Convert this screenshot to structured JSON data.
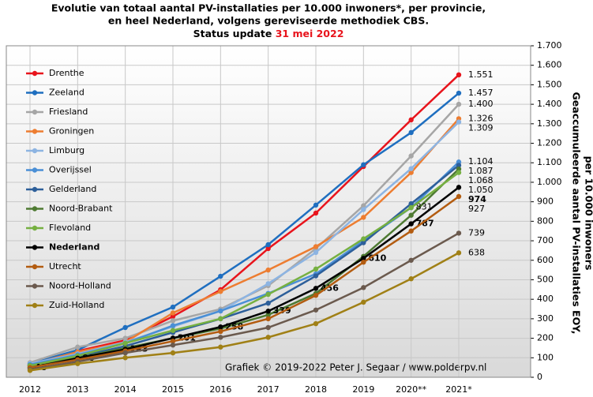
{
  "chart_data": {
    "type": "line",
    "title": [
      "Evolutie van totaal aantal PV-installaties per 10.000 inwoners*, per provincie,",
      "en heel Nederland, volgens gereviseerde methodiek CBS."
    ],
    "status": "Status update",
    "status_date": "31 mei 2022",
    "y_label": [
      "Geaccumuleerde aantal PV-installaties EOY,",
      "per 10.000 inwoners"
    ],
    "annotation": "Grafiek © 2019-2022 Peter J. Segaar / www.polderpv.nl",
    "categories": [
      "2012",
      "2013",
      "2014",
      "2015",
      "2016",
      "2017",
      "2018",
      "2019",
      "2020**",
      "2021*"
    ],
    "ylim": [
      0,
      1700
    ],
    "yticks": [
      0,
      {
        "value": 100,
        "label": "100"
      },
      200,
      300,
      400,
      500,
      600,
      700,
      800,
      900,
      {
        "value": 1000,
        "label": "1.000"
      },
      {
        "value": 1100,
        "label": "1.100"
      },
      {
        "value": 1200,
        "label": "1.200"
      },
      {
        "value": 1300,
        "label": "1.300"
      },
      {
        "value": 1400,
        "label": "1.400"
      },
      {
        "value": 1500,
        "label": "1.500"
      },
      {
        "value": 1600,
        "label": "1.600"
      },
      {
        "value": 1700,
        "label": "1.700"
      }
    ],
    "grid": true,
    "legend": "top-left",
    "series": [
      {
        "name": "Drenthe",
        "color": "#e8141c",
        "values": [
          60,
          134,
          190,
          312,
          449,
          660,
          842,
          1081,
          1320,
          1551
        ],
        "value_labels": [
          null,
          null,
          null,
          null,
          null,
          null,
          null,
          null,
          null,
          "1.551"
        ]
      },
      {
        "name": "Zeeland",
        "color": "#1f6fc0",
        "values": [
          70,
          140,
          255,
          360,
          518,
          680,
          883,
          1090,
          1255,
          1457
        ],
        "value_labels": [
          null,
          null,
          null,
          null,
          null,
          null,
          null,
          null,
          null,
          "1.457"
        ]
      },
      {
        "name": "Friesland",
        "color": "#a6a6a6",
        "values": [
          75,
          155,
          200,
          290,
          350,
          470,
          660,
          880,
          1135,
          1400
        ],
        "value_labels": [
          null,
          null,
          null,
          null,
          null,
          null,
          null,
          null,
          null,
          "1.400"
        ]
      },
      {
        "name": "Groningen",
        "color": "#ed7d31",
        "values": [
          65,
          130,
          180,
          330,
          440,
          550,
          670,
          820,
          1050,
          1326
        ],
        "value_labels": [
          null,
          null,
          null,
          null,
          null,
          null,
          null,
          null,
          null,
          "1.326"
        ]
      },
      {
        "name": "Limburg",
        "color": "#8db4e2",
        "values": [
          70,
          120,
          180,
          260,
          340,
          480,
          640,
          860,
          1070,
          1309
        ],
        "value_labels": [
          null,
          null,
          null,
          null,
          null,
          null,
          null,
          null,
          null,
          "1.309"
        ]
      },
      {
        "name": "Overijssel",
        "color": "#4a8fd6",
        "values": [
          65,
          115,
          175,
          265,
          340,
          430,
          530,
          700,
          870,
          1104
        ],
        "value_labels": [
          null,
          null,
          null,
          null,
          null,
          null,
          null,
          null,
          null,
          "1.104"
        ]
      },
      {
        "name": "Gelderland",
        "color": "#2d5f9a",
        "values": [
          60,
          105,
          160,
          230,
          300,
          380,
          520,
          690,
          890,
          1087
        ],
        "value_labels": [
          null,
          null,
          null,
          null,
          null,
          null,
          null,
          null,
          null,
          "1.087"
        ]
      },
      {
        "name": "Noord-Brabant",
        "color": "#4e7a32",
        "values": [
          55,
          100,
          150,
          200,
          250,
          320,
          430,
          620,
          831,
          1068
        ],
        "value_labels": [
          null,
          null,
          null,
          null,
          null,
          null,
          null,
          null,
          "831",
          "1.068"
        ]
      },
      {
        "name": "Flevoland",
        "color": "#76b041",
        "values": [
          60,
          110,
          175,
          240,
          300,
          425,
          555,
          710,
          870,
          1050
        ],
        "value_labels": [
          null,
          null,
          null,
          null,
          null,
          null,
          null,
          null,
          null,
          "1.050"
        ]
      },
      {
        "name": "Nederland",
        "color": "#000000",
        "bold": true,
        "values": [
          48,
          98,
          143,
          201,
          258,
          339,
          456,
          610,
          787,
          974
        ],
        "value_labels": [
          "48",
          "98",
          "143",
          "201",
          "258",
          "339",
          "456",
          "610",
          "787",
          "974"
        ]
      },
      {
        "name": "Utrecht",
        "color": "#b35c10",
        "values": [
          50,
          90,
          135,
          185,
          235,
          300,
          420,
          590,
          750,
          927
        ],
        "value_labels": [
          null,
          null,
          null,
          null,
          null,
          null,
          null,
          null,
          null,
          "927"
        ]
      },
      {
        "name": "Noord-Holland",
        "color": "#6b5a4e",
        "values": [
          40,
          80,
          125,
          165,
          205,
          255,
          345,
          460,
          600,
          739
        ],
        "value_labels": [
          null,
          null,
          null,
          null,
          null,
          null,
          null,
          null,
          null,
          "739"
        ]
      },
      {
        "name": "Zuid-Holland",
        "color": "#a08016",
        "values": [
          35,
          70,
          100,
          125,
          155,
          205,
          275,
          385,
          505,
          638
        ],
        "value_labels": [
          null,
          null,
          null,
          null,
          null,
          null,
          null,
          null,
          null,
          "638"
        ]
      }
    ]
  }
}
